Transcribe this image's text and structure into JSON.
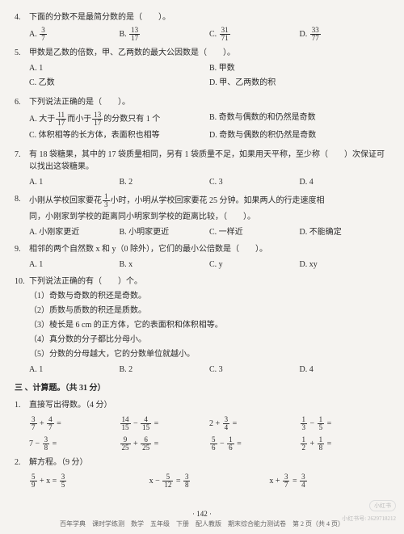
{
  "q4": {
    "num": "4.",
    "stem": "下面的分数不是最简分数的是（　　）。",
    "opts": {
      "A": "A.",
      "B": "B.",
      "C": "C.",
      "D": "D."
    },
    "fracs": {
      "A": [
        "3",
        "7"
      ],
      "B": [
        "13",
        "17"
      ],
      "C": [
        "31",
        "71"
      ],
      "D": [
        "33",
        "77"
      ]
    }
  },
  "q5": {
    "num": "5.",
    "stem": "甲数是乙数的倍数，甲、乙两数的最大公因数是（　　）。",
    "A": "A. 1",
    "B": "B. 甲数",
    "C": "C. 乙数",
    "D": "D. 甲、乙两数的积"
  },
  "q6": {
    "num": "6.",
    "stem": "下列说法正确的是（　　）。",
    "A_pre": "A. 大于",
    "A_mid": "而小于",
    "A_post": "的分数只有 1 个",
    "A_f1": [
      "11",
      "17"
    ],
    "A_f2": [
      "13",
      "17"
    ],
    "B": "B. 奇数与偶数的和仍然是奇数",
    "C": "C. 体积相等的长方体，表面积也相等",
    "D": "D. 奇数与偶数的积仍然是奇数"
  },
  "q7": {
    "num": "7.",
    "stem": "有 18 袋糖果，其中的 17 袋质量相同，另有 1 袋质量不足，如果用天平称，至少称（　　）次保证可以找出这袋糖果。",
    "A": "A. 1",
    "B": "B. 2",
    "C": "C. 3",
    "D": "D. 4"
  },
  "q8": {
    "num": "8.",
    "stem_pre": "小刚从学校回家要花",
    "stem_frac": [
      "1",
      "3"
    ],
    "stem_mid": "小时，小明从学校回家要花 25 分钟。如果两人的行走速度相",
    "stem2": "同，小刚家到学校的距离同小明家到学校的距离比较，（　　）。",
    "A": "A. 小刚家更近",
    "B": "B. 小明家更近",
    "C": "C. 一样近",
    "D": "D. 不能确定"
  },
  "q9": {
    "num": "9.",
    "stem": "相邻的两个自然数 x 和 y（0 除外），它们的最小公倍数是（　　）。",
    "A": "A. 1",
    "B": "B. x",
    "C": "C. y",
    "D": "D. xy"
  },
  "q10": {
    "num": "10.",
    "stem": "下列说法正确的有（　　）个。",
    "s1": "（1）奇数与奇数的积还是奇数。",
    "s2": "（2）质数与质数的积还是质数。",
    "s3": "（3）棱长是 6 cm 的正方体，它的表面积和体积相等。",
    "s4": "（4）真分数的分子都比分母小。",
    "s5": "（5）分数的分母越大，它的分数单位就越小。",
    "A": "A. 1",
    "B": "B. 2",
    "C": "C. 3",
    "D": "D. 4"
  },
  "sec3": "三 、计算题。（共 31 分）",
  "c1": {
    "num": "1.",
    "stem": "直接写出得数。（4 分）",
    "row1": {
      "a": {
        "f1": [
          "3",
          "7"
        ],
        "op": "+",
        "f2": [
          "4",
          "7"
        ],
        "eq": "="
      },
      "b": {
        "f1": [
          "14",
          "15"
        ],
        "op": "−",
        "f2": [
          "4",
          "15"
        ],
        "eq": "="
      },
      "c": {
        "pre": "2 +",
        "f": [
          "3",
          "4"
        ],
        "eq": "="
      },
      "d": {
        "f1": [
          "1",
          "3"
        ],
        "op": "−",
        "f2": [
          "1",
          "5"
        ],
        "eq": "="
      }
    },
    "row2": {
      "a": {
        "pre": "7 −",
        "f": [
          "3",
          "8"
        ],
        "eq": "="
      },
      "b": {
        "f1": [
          "9",
          "25"
        ],
        "op": "+",
        "f2": [
          "6",
          "25"
        ],
        "eq": "="
      },
      "c": {
        "f1": [
          "5",
          "6"
        ],
        "op": "−",
        "f2": [
          "1",
          "6"
        ],
        "eq": "="
      },
      "d": {
        "f1": [
          "1",
          "2"
        ],
        "op": "+",
        "f2": [
          "1",
          "8"
        ],
        "eq": "="
      }
    }
  },
  "c2": {
    "num": "2.",
    "stem": "解方程。（9 分）",
    "a": {
      "f1": [
        "5",
        "9"
      ],
      "mid": "+ x =",
      "f2": [
        "3",
        "5"
      ]
    },
    "b": {
      "pre": "x −",
      "f1": [
        "5",
        "12"
      ],
      "mid": "=",
      "f2": [
        "3",
        "8"
      ]
    },
    "c": {
      "pre": "x +",
      "f1": [
        "3",
        "7"
      ],
      "mid": "=",
      "f2": [
        "3",
        "4"
      ]
    }
  },
  "footer": "百年学典　课时学练测　数学　五年级　下册　配人教版　期末综合能力测试卷　第 2 页（共 4 页）",
  "pagenum": "· 142 ·",
  "wm1": "小红书",
  "wm2": "小红书号: 2629718212"
}
